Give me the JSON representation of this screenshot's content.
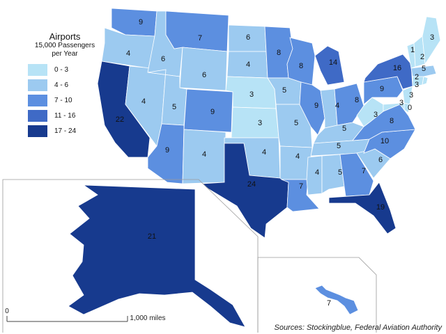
{
  "legend": {
    "title": "Airports",
    "subtitle_line1": "15,000 Passengers",
    "subtitle_line2": "per Year",
    "bins": [
      {
        "label": "0 - 3",
        "color": "#b7e3f6"
      },
      {
        "label": "4 - 6",
        "color": "#9ccaf0"
      },
      {
        "label": "7 - 10",
        "color": "#5c8fe0"
      },
      {
        "label": "11 - 16",
        "color": "#3f6ac6"
      },
      {
        "label": "17 - 24",
        "color": "#173a8e"
      }
    ]
  },
  "scale": {
    "start": "0",
    "end": "1,000 miles"
  },
  "source": "Sources: Stockingblue, Federal Aviation Authority",
  "states": [
    {
      "id": "WA",
      "value": 9
    },
    {
      "id": "OR",
      "value": 4
    },
    {
      "id": "CA",
      "value": 22
    },
    {
      "id": "NV",
      "value": 4
    },
    {
      "id": "ID",
      "value": 6
    },
    {
      "id": "MT",
      "value": 7
    },
    {
      "id": "WY",
      "value": 6
    },
    {
      "id": "UT",
      "value": 5
    },
    {
      "id": "AZ",
      "value": 9
    },
    {
      "id": "CO",
      "value": 9
    },
    {
      "id": "NM",
      "value": 4
    },
    {
      "id": "ND",
      "value": 6
    },
    {
      "id": "SD",
      "value": 4
    },
    {
      "id": "NE",
      "value": 3
    },
    {
      "id": "KS",
      "value": 3
    },
    {
      "id": "OK",
      "value": 4
    },
    {
      "id": "TX",
      "value": 24
    },
    {
      "id": "MN",
      "value": 8
    },
    {
      "id": "IA",
      "value": 5
    },
    {
      "id": "MO",
      "value": 5
    },
    {
      "id": "AR",
      "value": 4
    },
    {
      "id": "LA",
      "value": 7
    },
    {
      "id": "WI",
      "value": 8
    },
    {
      "id": "IL",
      "value": 9
    },
    {
      "id": "MI",
      "value": 14
    },
    {
      "id": "IN",
      "value": 4
    },
    {
      "id": "OH",
      "value": 8
    },
    {
      "id": "KY",
      "value": 5
    },
    {
      "id": "TN",
      "value": 5
    },
    {
      "id": "MS",
      "value": 4
    },
    {
      "id": "AL",
      "value": 5
    },
    {
      "id": "GA",
      "value": 7
    },
    {
      "id": "FL",
      "value": 19
    },
    {
      "id": "SC",
      "value": 6
    },
    {
      "id": "NC",
      "value": 10
    },
    {
      "id": "VA",
      "value": 8
    },
    {
      "id": "WV",
      "value": 3
    },
    {
      "id": "PA",
      "value": 9
    },
    {
      "id": "NY",
      "value": 16
    },
    {
      "id": "NJ",
      "value": 3
    },
    {
      "id": "DE",
      "value": 0
    },
    {
      "id": "MD",
      "value": 3
    },
    {
      "id": "CT",
      "value": 3
    },
    {
      "id": "RI",
      "value": 2
    },
    {
      "id": "MA",
      "value": 5
    },
    {
      "id": "VT",
      "value": 1
    },
    {
      "id": "NH",
      "value": 2
    },
    {
      "id": "ME",
      "value": 3
    },
    {
      "id": "AK",
      "value": 21
    },
    {
      "id": "HI",
      "value": 7
    }
  ]
}
